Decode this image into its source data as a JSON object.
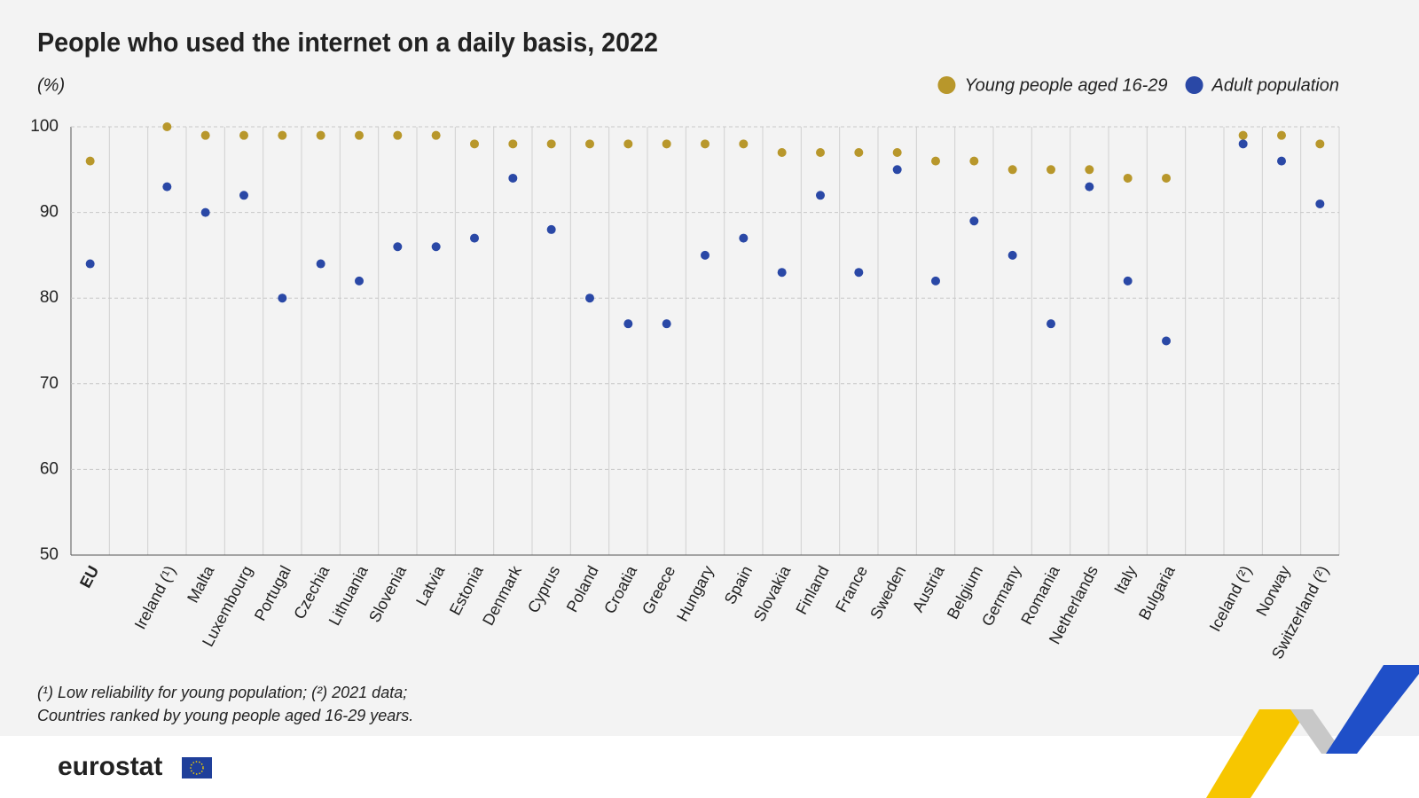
{
  "chart_data": {
    "type": "dot",
    "title": "People who used the internet on a daily basis, 2022",
    "y_label": "(%)",
    "categories": [
      "EU",
      null,
      "Ireland (¹)",
      "Malta",
      "Luxembourg",
      "Portugal",
      "Czechia",
      "Lithuania",
      "Slovenia",
      "Latvia",
      "Estonia",
      "Denmark",
      "Cyprus",
      "Poland",
      "Croatia",
      "Greece",
      "Hungary",
      "Spain",
      "Slovakia",
      "Finland",
      "France",
      "Sweden",
      "Austria",
      "Belgium",
      "Germany",
      "Romania",
      "Netherlands",
      "Italy",
      "Bulgaria",
      null,
      "Iceland (²)",
      "Norway",
      "Switzerland (²)"
    ],
    "series": [
      {
        "name": "Young people aged 16-29",
        "color": "#b8972b",
        "values": [
          96,
          null,
          100,
          99,
          99,
          99,
          99,
          99,
          99,
          99,
          98,
          98,
          98,
          98,
          98,
          98,
          98,
          98,
          97,
          97,
          97,
          97,
          96,
          96,
          95,
          95,
          95,
          94,
          94,
          null,
          99,
          99,
          98
        ]
      },
      {
        "name": "Adult population",
        "color": "#2a48a6",
        "values": [
          84,
          null,
          93,
          90,
          92,
          80,
          84,
          82,
          86,
          86,
          87,
          94,
          88,
          80,
          77,
          77,
          85,
          87,
          83,
          92,
          83,
          95,
          82,
          89,
          85,
          77,
          93,
          82,
          75,
          null,
          98,
          96,
          91
        ]
      }
    ],
    "ylim": [
      50,
      100
    ],
    "yticks": [
      50,
      60,
      70,
      80,
      90,
      100
    ],
    "grid": true,
    "legend": "top-right",
    "footnotes": [
      "(¹) Low reliability for young population; (²) 2021 data;",
      "Countries ranked by young people aged 16-29 years."
    ],
    "logo": "eurostat"
  }
}
